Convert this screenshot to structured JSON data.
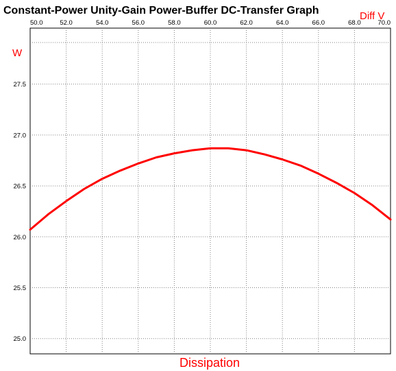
{
  "chart_data": {
    "type": "line",
    "title": "Constant-Power Unity-Gain Power-Buffer DC-Transfer Graph",
    "xlabel": "Dissipation",
    "ylabel": "W",
    "x_unit": "Diff V",
    "xlim": [
      50.0,
      70.0
    ],
    "ylim": [
      24.85,
      28.05
    ],
    "x_ticks": [
      "50.0",
      "52.0",
      "54.0",
      "56.0",
      "58.0",
      "60.0",
      "62.0",
      "64.0",
      "66.0",
      "68.0",
      "70.0"
    ],
    "y_ticks": [
      "25.0",
      "25.5",
      "26.0",
      "26.5",
      "27.0",
      "27.5"
    ],
    "y_tick_values": [
      25.0,
      25.5,
      26.0,
      26.5,
      27.0,
      27.5
    ],
    "grid": true,
    "series": [
      {
        "x": [
          50,
          51,
          52,
          53,
          54,
          55,
          56,
          57,
          58,
          59,
          60,
          61,
          62,
          63,
          64,
          65,
          66,
          67,
          68,
          69,
          70
        ],
        "y": [
          26.07,
          26.22,
          26.35,
          26.47,
          26.57,
          26.65,
          26.72,
          26.78,
          26.82,
          26.85,
          26.87,
          26.87,
          26.85,
          26.81,
          26.76,
          26.7,
          26.62,
          26.53,
          26.43,
          26.31,
          26.17
        ]
      }
    ]
  },
  "colors": {
    "line": "#ff0000",
    "label": "#ff0000",
    "grid": "#808080",
    "axis": "#000000"
  }
}
